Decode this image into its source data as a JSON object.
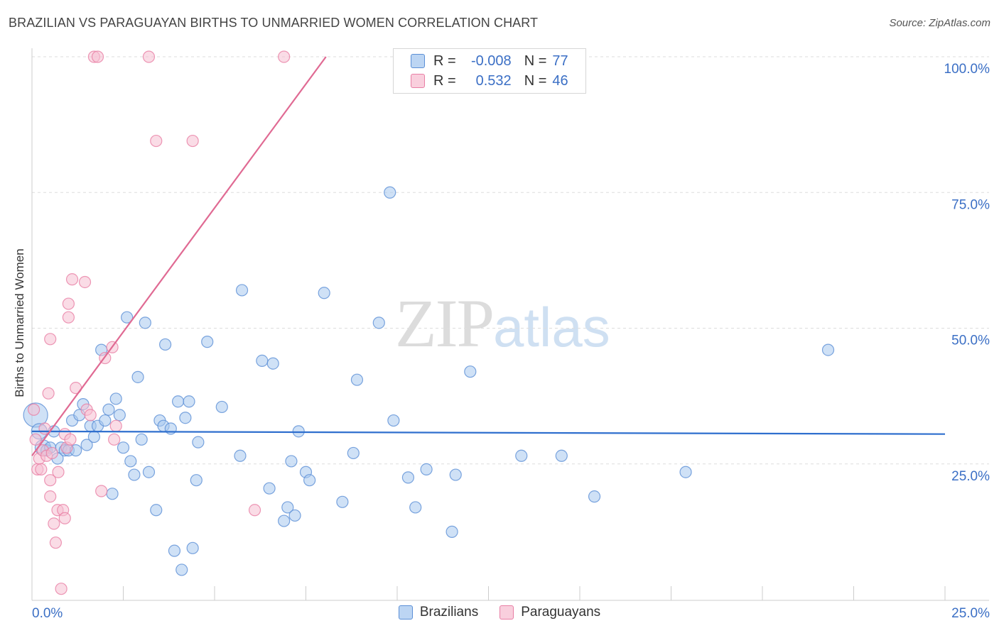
{
  "header": {
    "title": "BRAZILIAN VS PARAGUAYAN BIRTHS TO UNMARRIED WOMEN CORRELATION CHART",
    "source": "Source: ZipAtlas.com"
  },
  "watermark": {
    "zip": "ZIP",
    "atlas": "atlas"
  },
  "legend": {
    "rows": [
      {
        "r_label": "R =",
        "r_value": "-0.008",
        "n_label": "N =",
        "n_value": "77"
      },
      {
        "r_label": "R =",
        "r_value": "0.532",
        "n_label": "N =",
        "n_value": "46"
      }
    ]
  },
  "bottom_legend": {
    "series1": "Brazilians",
    "series2": "Paraguayans"
  },
  "colors": {
    "blue_fill": "#a8c8ef",
    "blue_stroke": "#5b8fd6",
    "blue_line": "#2f6fce",
    "pink_fill": "#f6bfd2",
    "pink_stroke": "#e87ea4",
    "pink_line": "#e06a93",
    "tick_label": "#3b6fc5",
    "grid": "#dddddd"
  },
  "chart_data": {
    "type": "scatter",
    "title": "BRAZILIAN VS PARAGUAYAN BIRTHS TO UNMARRIED WOMEN CORRELATION CHART",
    "xlabel": "",
    "ylabel": "Births to Unmarried Women",
    "xlim": [
      0,
      25
    ],
    "ylim": [
      0,
      100
    ],
    "x_tick_labels": [
      "0.0%",
      "25.0%"
    ],
    "y_tick_labels": [
      "25.0%",
      "50.0%",
      "75.0%",
      "100.0%"
    ],
    "y_ticks": [
      25,
      50,
      75,
      100
    ],
    "series": [
      {
        "name": "Brazilians",
        "r": -0.008,
        "n": 77,
        "trend": {
          "x": [
            0,
            25
          ],
          "y": [
            31.0,
            30.5
          ]
        },
        "points": [
          [
            0.1,
            34.0,
            3
          ],
          [
            0.2,
            31.0,
            2
          ],
          [
            0.3,
            28.0,
            2
          ],
          [
            0.4,
            27.5,
            1
          ],
          [
            0.5,
            28.0,
            1
          ],
          [
            0.6,
            31.0,
            1
          ],
          [
            0.7,
            26.0,
            1
          ],
          [
            0.8,
            28.0,
            1
          ],
          [
            0.9,
            27.5,
            1
          ],
          [
            1.0,
            27.5,
            1
          ],
          [
            1.1,
            33.0,
            1
          ],
          [
            1.2,
            27.5,
            1
          ],
          [
            1.3,
            34.0,
            1
          ],
          [
            1.4,
            36.0,
            1
          ],
          [
            1.5,
            28.5,
            1
          ],
          [
            1.6,
            32.0,
            1
          ],
          [
            1.7,
            30.0,
            1
          ],
          [
            1.8,
            32.0,
            1
          ],
          [
            1.9,
            46.0,
            1
          ],
          [
            2.0,
            33.0,
            1
          ],
          [
            2.1,
            35.0,
            1
          ],
          [
            2.2,
            19.5,
            1
          ],
          [
            2.3,
            37.0,
            1
          ],
          [
            2.4,
            34.0,
            1
          ],
          [
            2.5,
            28.0,
            1
          ],
          [
            2.6,
            52.0,
            1
          ],
          [
            2.7,
            25.5,
            1
          ],
          [
            2.8,
            23.0,
            1
          ],
          [
            2.9,
            41.0,
            1
          ],
          [
            3.0,
            29.5,
            1
          ],
          [
            3.1,
            51.0,
            1
          ],
          [
            3.2,
            23.5,
            1
          ],
          [
            3.4,
            16.5,
            1
          ],
          [
            3.5,
            33.0,
            1
          ],
          [
            3.6,
            32.0,
            1
          ],
          [
            3.65,
            47.0,
            1
          ],
          [
            3.8,
            31.5,
            1
          ],
          [
            3.9,
            9.0,
            1
          ],
          [
            4.0,
            36.5,
            1
          ],
          [
            4.1,
            5.5,
            1
          ],
          [
            4.2,
            33.5,
            1
          ],
          [
            4.3,
            36.5,
            1
          ],
          [
            4.4,
            9.5,
            1
          ],
          [
            4.5,
            22.0,
            1
          ],
          [
            4.55,
            29.0,
            1
          ],
          [
            4.8,
            47.5,
            1
          ],
          [
            5.2,
            35.5,
            1
          ],
          [
            5.7,
            26.5,
            1
          ],
          [
            5.75,
            57.0,
            1
          ],
          [
            6.3,
            44.0,
            1
          ],
          [
            6.5,
            20.5,
            1
          ],
          [
            6.6,
            43.5,
            1
          ],
          [
            6.9,
            14.5,
            1
          ],
          [
            7.0,
            17.0,
            1
          ],
          [
            7.1,
            25.5,
            1
          ],
          [
            7.2,
            15.5,
            1
          ],
          [
            7.3,
            31.0,
            1
          ],
          [
            7.5,
            23.5,
            1
          ],
          [
            7.6,
            22.0,
            1
          ],
          [
            8.0,
            56.5,
            1
          ],
          [
            8.5,
            18.0,
            1
          ],
          [
            8.8,
            27.0,
            1
          ],
          [
            8.9,
            40.5,
            1
          ],
          [
            9.5,
            51.0,
            1
          ],
          [
            9.8,
            75.0,
            1
          ],
          [
            9.9,
            33.0,
            1
          ],
          [
            10.3,
            22.5,
            1
          ],
          [
            10.5,
            17.0,
            1
          ],
          [
            10.8,
            24.0,
            1
          ],
          [
            11.5,
            12.5,
            1
          ],
          [
            11.6,
            23.0,
            1
          ],
          [
            12.0,
            42.0,
            1
          ],
          [
            13.4,
            26.5,
            1
          ],
          [
            14.5,
            26.5,
            1
          ],
          [
            15.4,
            19.0,
            1
          ],
          [
            17.9,
            23.5,
            1
          ],
          [
            21.8,
            46.0,
            1
          ]
        ]
      },
      {
        "name": "Paraguayans",
        "r": 0.532,
        "n": 46,
        "trend": {
          "x": [
            0,
            8.05
          ],
          "y": [
            26.5,
            100
          ]
        },
        "points": [
          [
            0.05,
            35.0,
            1
          ],
          [
            0.1,
            29.5,
            1
          ],
          [
            0.15,
            24.0,
            1
          ],
          [
            0.2,
            26.0,
            1
          ],
          [
            0.25,
            24.0,
            1
          ],
          [
            0.3,
            27.5,
            1
          ],
          [
            0.35,
            31.5,
            1
          ],
          [
            0.4,
            26.5,
            1
          ],
          [
            0.45,
            38.0,
            1
          ],
          [
            0.5,
            22.0,
            1
          ],
          [
            0.5,
            19.0,
            1
          ],
          [
            0.5,
            48.0,
            1
          ],
          [
            0.55,
            27.0,
            1
          ],
          [
            0.6,
            14.0,
            1
          ],
          [
            0.65,
            10.5,
            1
          ],
          [
            0.7,
            16.5,
            1
          ],
          [
            0.72,
            23.5,
            1
          ],
          [
            0.8,
            2.0,
            1
          ],
          [
            0.85,
            16.5,
            1
          ],
          [
            0.9,
            15.0,
            1
          ],
          [
            0.9,
            30.5,
            1
          ],
          [
            0.95,
            28.0,
            1
          ],
          [
            1.0,
            52.0,
            1
          ],
          [
            1.0,
            54.5,
            1
          ],
          [
            1.05,
            29.5,
            1
          ],
          [
            1.1,
            59.0,
            1
          ],
          [
            1.2,
            39.0,
            1
          ],
          [
            1.45,
            58.5,
            1
          ],
          [
            1.5,
            35.0,
            1
          ],
          [
            1.6,
            34.0,
            1
          ],
          [
            1.7,
            100.0,
            1
          ],
          [
            1.8,
            100.0,
            1
          ],
          [
            1.9,
            20.0,
            1
          ],
          [
            2.0,
            44.5,
            1
          ],
          [
            2.2,
            46.5,
            1
          ],
          [
            2.25,
            29.5,
            1
          ],
          [
            2.3,
            32.0,
            1
          ],
          [
            3.2,
            100.0,
            1
          ],
          [
            3.4,
            84.5,
            1
          ],
          [
            4.4,
            84.5,
            1
          ],
          [
            6.1,
            16.5,
            1
          ],
          [
            6.9,
            100.0,
            1
          ]
        ]
      }
    ]
  }
}
